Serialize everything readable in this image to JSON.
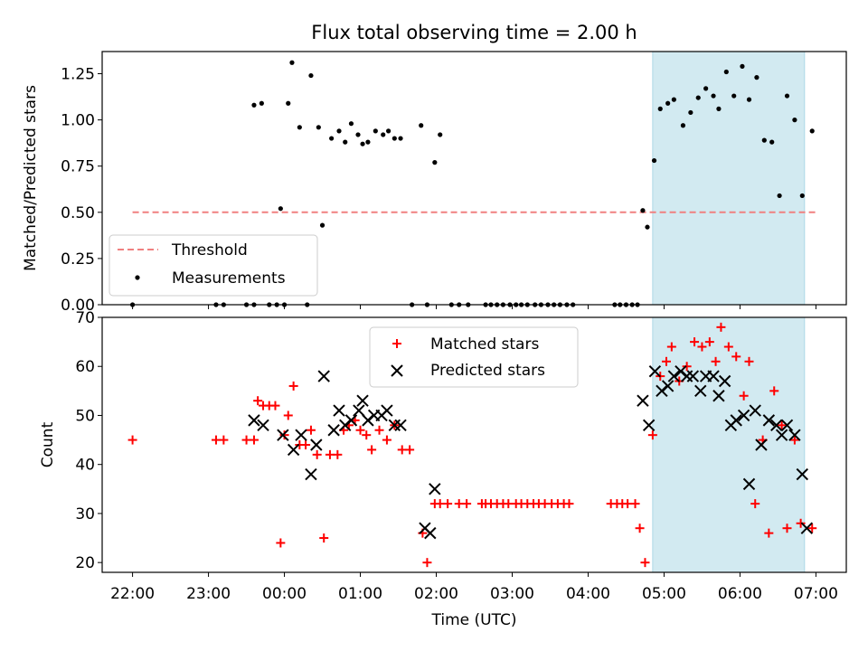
{
  "chart_data": [
    {
      "type": "scatter",
      "title": "Flux total observing time = 2.00 h",
      "xlabel": "",
      "ylabel": "Matched/Predicted stars",
      "ylim": [
        0,
        1.37
      ],
      "yticks": [
        "0.00",
        "0.25",
        "0.50",
        "0.75",
        "1.00",
        "1.25"
      ],
      "ytick_values": [
        0,
        0.25,
        0.5,
        0.75,
        1.0,
        1.25
      ],
      "xlim_hours": [
        21.6,
        31.4
      ],
      "shaded_span_hours": [
        28.85,
        30.85
      ],
      "threshold": {
        "name": "Threshold",
        "value": 0.5,
        "x_start_hours": 22.0,
        "x_end_hours": 31.0
      },
      "legend": {
        "position": "lower-left",
        "entries": [
          "Threshold",
          "Measurements"
        ]
      },
      "series": [
        {
          "name": "Measurements",
          "x_hours": [
            22.0,
            23.1,
            23.2,
            23.5,
            23.6,
            23.6,
            23.7,
            23.8,
            23.9,
            23.95,
            24.0,
            24.05,
            24.1,
            24.2,
            24.3,
            24.35,
            24.45,
            24.5,
            24.62,
            24.72,
            24.8,
            24.88,
            24.97,
            25.03,
            25.1,
            25.2,
            25.3,
            25.37,
            25.45,
            25.53,
            25.68,
            25.8,
            25.88,
            25.98,
            26.05,
            26.2,
            26.3,
            26.42,
            26.65,
            26.72,
            26.8,
            26.88,
            26.97,
            27.05,
            27.12,
            27.2,
            27.3,
            27.38,
            27.47,
            27.55,
            27.63,
            27.72,
            27.8,
            28.35,
            28.42,
            28.5,
            28.58,
            28.65,
            28.72,
            28.78,
            28.87,
            28.95,
            29.05,
            29.13,
            29.25,
            29.35,
            29.45,
            29.55,
            29.65,
            29.72,
            29.82,
            29.92,
            30.03,
            30.12,
            30.22,
            30.32,
            30.42,
            30.52,
            30.62,
            30.72,
            30.82,
            30.95
          ],
          "y": [
            0.0,
            0.0,
            0.0,
            0.0,
            0.0,
            1.08,
            1.09,
            0.0,
            0.0,
            0.52,
            0.0,
            1.09,
            1.31,
            0.96,
            0.0,
            1.24,
            0.96,
            0.43,
            0.9,
            0.94,
            0.88,
            0.98,
            0.92,
            0.87,
            0.88,
            0.94,
            0.92,
            0.94,
            0.9,
            0.9,
            0.0,
            0.97,
            0.0,
            0.77,
            0.92,
            0.0,
            0.0,
            0.0,
            0.0,
            0.0,
            0.0,
            0.0,
            0.0,
            0.0,
            0.0,
            0.0,
            0.0,
            0.0,
            0.0,
            0.0,
            0.0,
            0.0,
            0.0,
            0.0,
            0.0,
            0.0,
            0.0,
            0.0,
            0.51,
            0.42,
            0.78,
            1.06,
            1.09,
            1.11,
            0.97,
            1.04,
            1.12,
            1.17,
            1.13,
            1.06,
            1.26,
            1.13,
            1.29,
            1.11,
            1.23,
            0.89,
            0.88,
            0.59,
            1.13,
            1.0,
            0.59,
            0.94
          ]
        }
      ]
    },
    {
      "type": "scatter",
      "title": "",
      "xlabel": "Time (UTC)",
      "ylabel": "Count",
      "ylim": [
        18,
        70
      ],
      "yticks": [
        "20",
        "30",
        "40",
        "50",
        "60",
        "70"
      ],
      "ytick_values": [
        20,
        30,
        40,
        50,
        60,
        70
      ],
      "xlim_hours": [
        21.6,
        31.4
      ],
      "xticks": [
        "22:00",
        "23:00",
        "00:00",
        "01:00",
        "02:00",
        "03:00",
        "04:00",
        "05:00",
        "06:00",
        "07:00"
      ],
      "xtick_hours": [
        22,
        23,
        24,
        25,
        26,
        27,
        28,
        29,
        30,
        31
      ],
      "shaded_span_hours": [
        28.85,
        30.85
      ],
      "legend": {
        "position": "top-center",
        "entries": [
          "Matched stars",
          "Predicted stars"
        ]
      },
      "series": [
        {
          "name": "Matched stars",
          "marker": "+",
          "color": "#ff0000",
          "x_hours": [
            22.0,
            23.1,
            23.2,
            23.5,
            23.6,
            23.65,
            23.72,
            23.8,
            23.88,
            23.95,
            24.0,
            24.05,
            24.12,
            24.2,
            24.28,
            24.35,
            24.43,
            24.52,
            24.6,
            24.7,
            24.78,
            24.85,
            24.93,
            25.0,
            25.08,
            25.15,
            25.25,
            25.35,
            25.45,
            25.55,
            25.65,
            25.82,
            25.88,
            25.98,
            26.05,
            26.15,
            26.3,
            26.4,
            26.6,
            26.65,
            26.72,
            26.8,
            26.88,
            26.95,
            27.05,
            27.12,
            27.2,
            27.28,
            27.35,
            27.43,
            27.52,
            27.6,
            27.68,
            27.75,
            28.3,
            28.38,
            28.45,
            28.52,
            28.62,
            28.68,
            28.75,
            28.85,
            28.95,
            29.03,
            29.1,
            29.2,
            29.3,
            29.4,
            29.5,
            29.6,
            29.68,
            29.75,
            29.85,
            29.95,
            30.05,
            30.12,
            30.2,
            30.3,
            30.38,
            30.45,
            30.55,
            30.62,
            30.72,
            30.8,
            30.95
          ],
          "y": [
            45,
            45,
            45,
            45,
            45,
            53,
            52,
            52,
            52,
            24,
            46,
            50,
            56,
            44,
            44,
            47,
            42,
            25,
            42,
            42,
            47,
            48,
            49,
            47,
            46,
            43,
            47,
            45,
            48,
            43,
            43,
            26,
            20,
            32,
            32,
            32,
            32,
            32,
            32,
            32,
            32,
            32,
            32,
            32,
            32,
            32,
            32,
            32,
            32,
            32,
            32,
            32,
            32,
            32,
            32,
            32,
            32,
            32,
            32,
            27,
            20,
            46,
            58,
            61,
            64,
            57,
            60,
            65,
            64,
            65,
            61,
            68,
            64,
            62,
            54,
            61,
            32,
            45,
            26,
            55,
            48,
            27,
            45,
            28,
            27
          ]
        },
        {
          "name": "Predicted stars",
          "marker": "x",
          "color": "#000000",
          "x_hours": [
            23.6,
            23.72,
            23.98,
            24.12,
            24.22,
            24.35,
            24.42,
            24.52,
            24.65,
            24.72,
            24.8,
            24.88,
            24.98,
            25.03,
            25.1,
            25.18,
            25.28,
            25.35,
            25.45,
            25.53,
            25.85,
            25.92,
            25.98,
            28.72,
            28.8,
            28.88,
            28.97,
            29.05,
            29.13,
            29.22,
            29.3,
            29.38,
            29.48,
            29.55,
            29.65,
            29.72,
            29.8,
            29.88,
            29.95,
            30.05,
            30.12,
            30.2,
            30.28,
            30.38,
            30.48,
            30.55,
            30.62,
            30.72,
            30.82,
            30.88
          ],
          "y": [
            49,
            48,
            46,
            43,
            46,
            38,
            44,
            58,
            47,
            51,
            48,
            49,
            51,
            53,
            49,
            50,
            50,
            51,
            48,
            48,
            27,
            26,
            35,
            53,
            48,
            59,
            55,
            56,
            58,
            59,
            58,
            58,
            55,
            58,
            58,
            54,
            57,
            48,
            49,
            50,
            36,
            51,
            44,
            49,
            48,
            46,
            48,
            46,
            38,
            27
          ]
        }
      ]
    }
  ]
}
